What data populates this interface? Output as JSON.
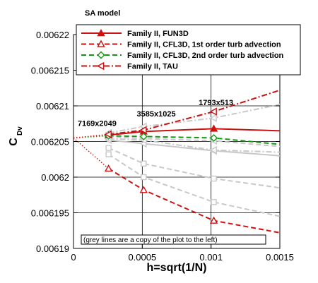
{
  "chart_data": {
    "type": "line",
    "model_label": "SA model",
    "xlabel": "h=sqrt(1/N)",
    "ylabel_main": "C",
    "ylabel_sub": "Dv",
    "xlim": [
      0,
      0.0015
    ],
    "ylim": [
      0.00619,
      0.00622
    ],
    "x_ticks": [
      0,
      0.0005,
      0.001,
      0.0015
    ],
    "x_tick_labels": [
      "0",
      "0.0005",
      "0.001",
      "0.0015"
    ],
    "y_ticks": [
      0.00619,
      0.006195,
      0.0062,
      0.006205,
      0.00621,
      0.006215,
      0.00622
    ],
    "y_tick_labels": [
      "0.00619",
      "0.006195",
      "0.0062",
      "0.006205",
      "0.00621",
      "0.006215",
      "0.00622"
    ],
    "grid": true,
    "legend_position": "top",
    "series": [
      {
        "name": "Family II, FUN3D",
        "color": "#cc1111",
        "dash": "solid",
        "marker": "triangle-filled",
        "x": [
          0.000255,
          0.00051,
          0.00102,
          0.0015
        ],
        "y": [
          0.0062059,
          0.0062064,
          0.0062068,
          0.0062065
        ],
        "extrap_x": [
          0,
          0.000255
        ],
        "extrap_y": [
          0.0062055,
          0.0062059
        ]
      },
      {
        "name": "Family II, CFL3D, 1st order turb advection",
        "color": "#cc1111",
        "dash": "dash",
        "marker": "triangle-open",
        "x": [
          0.000255,
          0.00051,
          0.00102,
          0.0015
        ],
        "y": [
          0.0062012,
          0.0061982,
          0.0061939,
          0.0061922
        ],
        "extrap_x": [
          0,
          0.000255
        ],
        "extrap_y": [
          0.0062055,
          0.0062012
        ]
      },
      {
        "name": "Family II, CFL3D, 2nd order turb advection",
        "color": "#119911",
        "dash": "dash",
        "marker": "diamond-open",
        "x": [
          0.000255,
          0.00051,
          0.00102,
          0.0015
        ],
        "y": [
          0.0062058,
          0.0062057,
          0.0062055,
          0.0062046
        ],
        "extrap_x": [
          0,
          0.000255
        ],
        "extrap_y": [
          0.0062055,
          0.0062058
        ]
      },
      {
        "name": "Family II, TAU",
        "color": "#cc1111",
        "dash": "dashdot",
        "marker": "triangle-left",
        "x": [
          0.000255,
          0.00051,
          0.00102,
          0.0015
        ],
        "y": [
          0.006206,
          0.0062066,
          0.0062092,
          0.0062122
        ],
        "extrap_x": [
          0,
          0.000255
        ],
        "extrap_y": [
          0.0062055,
          0.006206
        ]
      }
    ],
    "grey_series": [
      {
        "dash": "solid",
        "marker": "triangle-left",
        "x": [
          0.000255,
          0.00051,
          0.00102,
          0.0015
        ],
        "y": [
          0.0062052,
          0.0062047,
          0.0062037,
          0.006203
        ]
      },
      {
        "dash": "dash",
        "marker": "triangle-left",
        "x": [
          0.000255,
          0.00051,
          0.00102,
          0.0015
        ],
        "y": [
          0.0062057,
          0.0062054,
          0.0062051,
          0.0062043
        ]
      },
      {
        "dash": "dashdot",
        "marker": "triangle-left",
        "x": [
          0.000255,
          0.00051,
          0.00102,
          0.0015
        ],
        "y": [
          0.0062054,
          0.0062052,
          0.0062038,
          0.0062035
        ]
      },
      {
        "dash": "dashdot",
        "marker": "triangle-left",
        "x": [
          0.000255,
          0.00051,
          0.00102,
          0.0015
        ],
        "y": [
          0.0062062,
          0.0062071,
          0.0062083,
          0.0062102
        ]
      },
      {
        "dash": "dash",
        "marker": "square-open",
        "x": [
          0.000255,
          0.00051,
          0.00102,
          0.0015
        ],
        "y": [
          0.0062032,
          0.0062,
          0.0061965,
          0.0061945
        ]
      },
      {
        "dash": "dash",
        "marker": "square-open",
        "x": [
          0.000255,
          0.00051,
          0.00102,
          0.0015
        ],
        "y": [
          0.0062041,
          0.0062019,
          0.0061998,
          0.0061985
        ]
      }
    ],
    "annotations": [
      {
        "text": "7169x2049",
        "x": 3e-05,
        "y": 0.0062072
      },
      {
        "text": "3585x1025",
        "x": 0.00046,
        "y": 0.0062085
      },
      {
        "text": "1793x513",
        "x": 0.00091,
        "y": 0.0062101
      }
    ],
    "note": "(grey lines are a copy of the plot to the left)"
  }
}
